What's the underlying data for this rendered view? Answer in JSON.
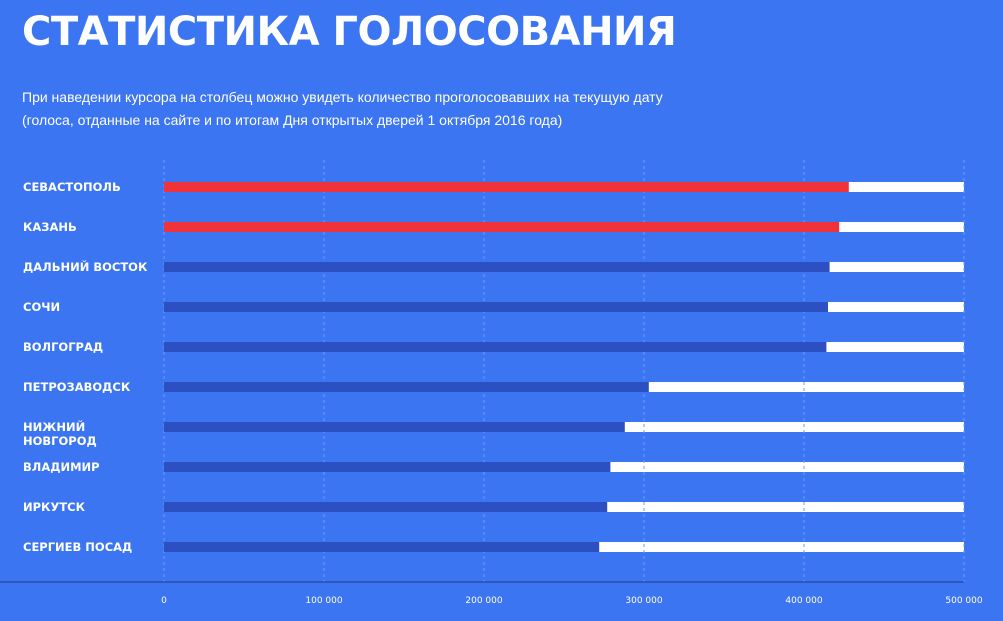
{
  "header": {
    "title": "СТАТИСТИКА ГОЛОСОВАНИЯ",
    "subtitle_line1": "При наведении курсора на столбец можно увидеть количество проголосовавших на текущую дату",
    "subtitle_line2": "(голоса, отданные на сайте и по итогам Дня открытых дверей 1 октября 2016 года)"
  },
  "colors": {
    "background": "#3b75f1",
    "bar_highlight": "#f0333a",
    "bar_default": "#2c50c2",
    "bar_track": "#ffffff",
    "grid": "#6e9bf6",
    "axis": "#1e3a8a"
  },
  "chart_data": {
    "type": "bar",
    "orientation": "horizontal",
    "categories": [
      [
        "СЕВАСТОПОЛЬ"
      ],
      [
        "КАЗАНЬ"
      ],
      [
        "ДАЛЬНИЙ ВОСТОК"
      ],
      [
        "СОЧИ"
      ],
      [
        "ВОЛГОГРАД"
      ],
      [
        "ПЕТРОЗАВОДСК"
      ],
      [
        "НИЖНИЙ",
        "НОВГОРОД"
      ],
      [
        "ВЛАДИМИР"
      ],
      [
        "ИРКУТСК"
      ],
      [
        "СЕРГИЕВ ПОСАД"
      ]
    ],
    "values": [
      428000,
      422000,
      416000,
      415000,
      414000,
      303000,
      288000,
      279000,
      277000,
      272000
    ],
    "highlighted": [
      true,
      true,
      false,
      false,
      false,
      false,
      false,
      false,
      false,
      false
    ],
    "xlim": [
      0,
      500000
    ],
    "xticks": [
      0,
      100000,
      200000,
      300000,
      400000,
      500000
    ],
    "xtick_labels": [
      "0",
      "100 000",
      "200 000",
      "300 000",
      "400 000",
      "500 000"
    ],
    "grid": true
  }
}
